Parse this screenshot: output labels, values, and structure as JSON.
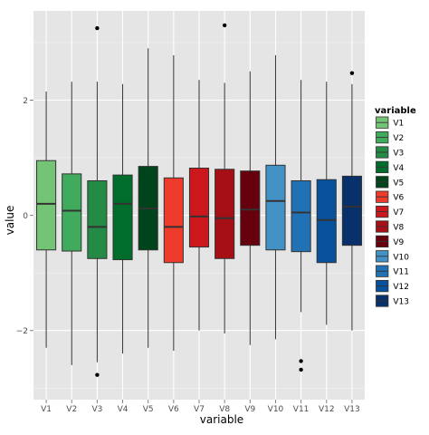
{
  "chart_data": {
    "type": "boxplot",
    "xlabel": "variable",
    "ylabel": "value",
    "ylim": [
      -3.2,
      3.55
    ],
    "y_ticks": [
      -2,
      0,
      2
    ],
    "y_tick_labels": [
      "−2",
      "0",
      "2"
    ],
    "grid": true,
    "legend": {
      "title": "variable",
      "placement": "right"
    },
    "categories": [
      "V1",
      "V2",
      "V3",
      "V4",
      "V5",
      "V6",
      "V7",
      "V8",
      "V9",
      "V10",
      "V11",
      "V12",
      "V13"
    ],
    "colors": [
      "#74c476",
      "#41ab5d",
      "#238b45",
      "#006d2c",
      "#00441b",
      "#ef3b2c",
      "#cb181d",
      "#a50f15",
      "#67000d",
      "#4292c6",
      "#2171b5",
      "#08519c",
      "#08306b"
    ],
    "series": [
      {
        "name": "V1",
        "whisker_low": -2.3,
        "q1": -0.6,
        "median": 0.2,
        "q3": 0.95,
        "whisker_high": 2.15,
        "outliers": []
      },
      {
        "name": "V2",
        "whisker_low": -2.6,
        "q1": -0.62,
        "median": 0.08,
        "q3": 0.72,
        "whisker_high": 2.32,
        "outliers": []
      },
      {
        "name": "V3",
        "whisker_low": -2.55,
        "q1": -0.75,
        "median": -0.2,
        "q3": 0.6,
        "whisker_high": 2.32,
        "outliers": [
          3.25,
          -2.77
        ]
      },
      {
        "name": "V4",
        "whisker_low": -2.4,
        "q1": -0.77,
        "median": 0.2,
        "q3": 0.7,
        "whisker_high": 2.28,
        "outliers": []
      },
      {
        "name": "V5",
        "whisker_low": -2.3,
        "q1": -0.6,
        "median": 0.12,
        "q3": 0.85,
        "whisker_high": 2.9,
        "outliers": []
      },
      {
        "name": "V6",
        "whisker_low": -2.35,
        "q1": -0.82,
        "median": -0.2,
        "q3": 0.65,
        "whisker_high": 2.78,
        "outliers": []
      },
      {
        "name": "V7",
        "whisker_low": -2.0,
        "q1": -0.55,
        "median": -0.02,
        "q3": 0.82,
        "whisker_high": 2.35,
        "outliers": []
      },
      {
        "name": "V8",
        "whisker_low": -2.05,
        "q1": -0.75,
        "median": -0.05,
        "q3": 0.8,
        "whisker_high": 2.3,
        "outliers": [
          3.3
        ]
      },
      {
        "name": "V9",
        "whisker_low": -2.25,
        "q1": -0.52,
        "median": 0.1,
        "q3": 0.77,
        "whisker_high": 2.5,
        "outliers": []
      },
      {
        "name": "V10",
        "whisker_low": -2.15,
        "q1": -0.6,
        "median": 0.25,
        "q3": 0.87,
        "whisker_high": 2.78,
        "outliers": []
      },
      {
        "name": "V11",
        "whisker_low": -1.68,
        "q1": -0.63,
        "median": 0.05,
        "q3": 0.6,
        "whisker_high": 2.35,
        "outliers": [
          -2.53,
          -2.68
        ]
      },
      {
        "name": "V12",
        "whisker_low": -1.9,
        "q1": -0.82,
        "median": -0.08,
        "q3": 0.62,
        "whisker_high": 2.32,
        "outliers": []
      },
      {
        "name": "V13",
        "whisker_low": -2.0,
        "q1": -0.52,
        "median": 0.15,
        "q3": 0.68,
        "whisker_high": 2.28,
        "outliers": [
          2.47
        ]
      }
    ]
  }
}
